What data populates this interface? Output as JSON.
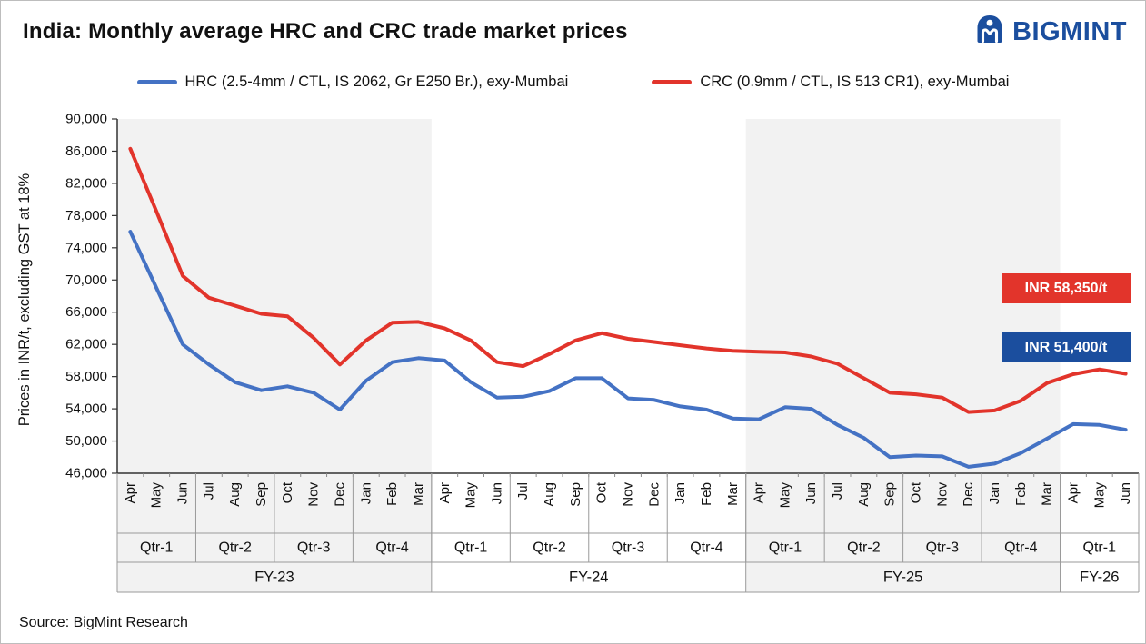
{
  "header": {
    "title": "India: Monthly average HRC and CRC trade market prices",
    "logo_text": "BIGMINT",
    "brand_color": "#1b4e9e"
  },
  "footer": {
    "source": "Source: BigMint Research"
  },
  "chart_data": {
    "type": "line",
    "title": "India: Monthly average HRC and CRC trade market prices",
    "xlabel": "",
    "ylabel": "Prices in INR/t, excluding GST at 18%",
    "ylim": [
      46000,
      90000
    ],
    "ytick_step": 4000,
    "grid": false,
    "legend_position": "top-center",
    "months": [
      "Apr",
      "May",
      "Jun",
      "Jul",
      "Aug",
      "Sep",
      "Oct",
      "Nov",
      "Dec",
      "Jan",
      "Feb",
      "Mar",
      "Apr",
      "May",
      "Jun",
      "Jul",
      "Aug",
      "Sep",
      "Oct",
      "Nov",
      "Dec",
      "Jan",
      "Feb",
      "Mar",
      "Apr",
      "May",
      "Jun",
      "Jul",
      "Aug",
      "Sep",
      "Oct",
      "Nov",
      "Dec",
      "Jan",
      "Feb",
      "Mar",
      "Apr",
      "May",
      "Jun"
    ],
    "quarters": [
      {
        "label": "Qtr-1",
        "span": 3
      },
      {
        "label": "Qtr-2",
        "span": 3
      },
      {
        "label": "Qtr-3",
        "span": 3
      },
      {
        "label": "Qtr-4",
        "span": 3
      },
      {
        "label": "Qtr-1",
        "span": 3
      },
      {
        "label": "Qtr-2",
        "span": 3
      },
      {
        "label": "Qtr-3",
        "span": 3
      },
      {
        "label": "Qtr-4",
        "span": 3
      },
      {
        "label": "Qtr-1",
        "span": 3
      },
      {
        "label": "Qtr-2",
        "span": 3
      },
      {
        "label": "Qtr-3",
        "span": 3
      },
      {
        "label": "Qtr-4",
        "span": 3
      },
      {
        "label": "Qtr-1",
        "span": 3
      }
    ],
    "fiscal_years": [
      {
        "label": "FY-23",
        "span": 12,
        "shaded": true
      },
      {
        "label": "FY-24",
        "span": 12,
        "shaded": false
      },
      {
        "label": "FY-25",
        "span": 12,
        "shaded": true
      },
      {
        "label": "FY-26",
        "span": 3,
        "shaded": false
      }
    ],
    "band_color": "#f2f2f2",
    "series": [
      {
        "name": "HRC (2.5-4mm / CTL, IS 2062, Gr E250 Br.), exy-Mumbai",
        "color": "#4472c4",
        "values": [
          76000,
          69000,
          62000,
          59500,
          57300,
          56300,
          56800,
          56000,
          53900,
          57500,
          59800,
          60300,
          60000,
          57300,
          55400,
          55500,
          56200,
          57800,
          57800,
          55300,
          55100,
          54300,
          53900,
          52800,
          52700,
          54200,
          54000,
          52000,
          50400,
          48000,
          48200,
          48100,
          46800,
          47200,
          48500,
          50300,
          52100,
          52000,
          51400
        ]
      },
      {
        "name": "CRC (0.9mm / CTL, IS 513 CR1), exy-Mumbai",
        "color": "#e2342b",
        "values": [
          86300,
          78500,
          70500,
          67800,
          66800,
          65800,
          65500,
          62800,
          59500,
          62500,
          64700,
          64800,
          64000,
          62500,
          59800,
          59300,
          60800,
          62500,
          63400,
          62700,
          62300,
          61900,
          61500,
          61200,
          61100,
          61000,
          60500,
          59600,
          57800,
          56000,
          55800,
          55400,
          53600,
          53800,
          55000,
          57200,
          58300,
          58900,
          58350
        ]
      }
    ],
    "annotations": [
      {
        "label": "INR 58,350/t",
        "color": "#e2342b",
        "series": "CRC"
      },
      {
        "label": "INR 51,400/t",
        "color": "#1b4e9e",
        "series": "HRC"
      }
    ]
  }
}
